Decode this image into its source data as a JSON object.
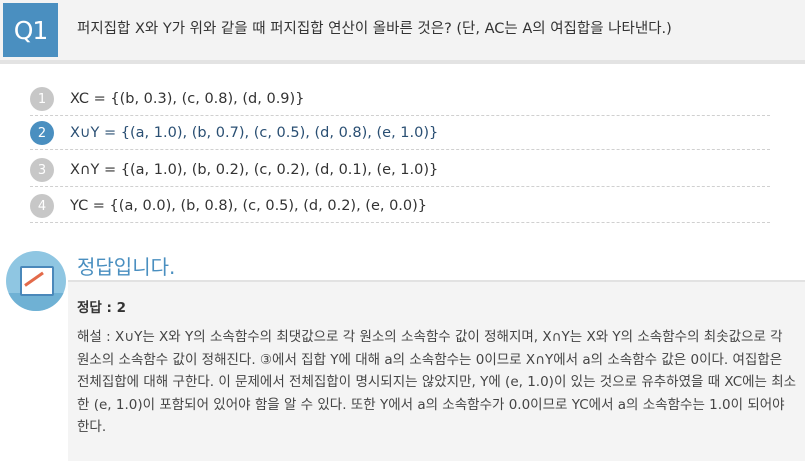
{
  "question": {
    "badge": "Q1",
    "text": "퍼지집합 X와 Y가 위와 같을 때 퍼지집합 연산이 올바른 것은? (단, AC는 A의 여집합을 나타낸다.)"
  },
  "choices": [
    {
      "number": "1",
      "text": "XC = {(b, 0.3), (c, 0.8), (d, 0.9)}",
      "selected": false
    },
    {
      "number": "2",
      "text": "X∪Y = {(a, 1.0), (b, 0.7), (c, 0.5), (d, 0.8), (e, 1.0)}",
      "selected": true
    },
    {
      "number": "3",
      "text": "X∩Y = {(a, 1.0), (b, 0.2), (c, 0.2), (d, 0.1), (e, 1.0)}",
      "selected": false
    },
    {
      "number": "4",
      "text": "YC = {(a, 0.0), (b, 0.8), (c, 0.5), (d, 0.2), (e, 0.0)}",
      "selected": false
    }
  ],
  "answer": {
    "title": "정답입니다.",
    "label": "정답 : 2",
    "explanation": "해설 : X∪Y는 X와 Y의 소속함수의 최댓값으로 각 원소의 소속함수 값이 정해지며, X∩Y는 X와 Y의 소속함수의 최솟값으로 각 원소의 소속함수 값이 정해진다. ③에서 집합 Y에 대해 a의 소속함수는 0이므로 X∩Y에서 a의 소속함수 값은 0이다. 여집합은 전체집합에 대해 구한다. 이 문제에서 전체집합이 명시되지는 않았지만, Y에 (e, 1.0)이 있는 것으로 유추하였을 때 XC에는 최소한 (e, 1.0)이 포함되어 있어야 함을 알 수 있다. 또한 Y에서 a의 소속함수가 0.0이므로 YC에서 a의 소속함수는 1.0이 되어야 한다."
  },
  "icons": {
    "answer": "answer-sheet-icon"
  },
  "colors": {
    "accent": "#4a8fc0",
    "unselected": "#c7c7c7"
  }
}
